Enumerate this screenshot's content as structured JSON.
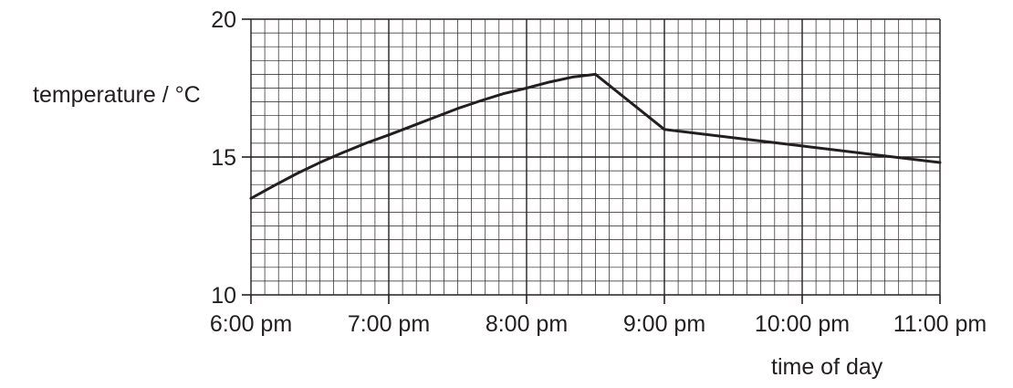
{
  "chart_data": {
    "type": "line",
    "title": "",
    "xlabel": "time of day",
    "ylabel": "temperature / °C",
    "x_ticks": [
      "6:00 pm",
      "7:00 pm",
      "8:00 pm",
      "9:00 pm",
      "10:00 pm",
      "11:00 pm"
    ],
    "y_ticks": [
      10,
      15,
      20
    ],
    "ylim": [
      10,
      20
    ],
    "xlim": [
      "6:00 pm",
      "11:00 pm"
    ],
    "grid": true,
    "series": [
      {
        "x": [
          "6:00 pm",
          "6:10 pm",
          "6:20 pm",
          "6:30 pm",
          "6:40 pm",
          "6:50 pm",
          "7:00 pm",
          "7:10 pm",
          "7:20 pm",
          "7:30 pm",
          "7:40 pm",
          "7:50 pm",
          "8:00 pm",
          "8:10 pm",
          "8:20 pm",
          "8:30 pm",
          "9:00 pm",
          "9:30 pm",
          "10:00 pm",
          "10:30 pm",
          "11:00 pm"
        ],
        "y": [
          13.5,
          13.96,
          14.4,
          14.8,
          15.16,
          15.5,
          15.8,
          16.12,
          16.44,
          16.76,
          17.04,
          17.3,
          17.5,
          17.72,
          17.9,
          18.0,
          16.0,
          15.7,
          15.4,
          15.1,
          14.8
        ],
        "color": "#231f20"
      }
    ]
  }
}
